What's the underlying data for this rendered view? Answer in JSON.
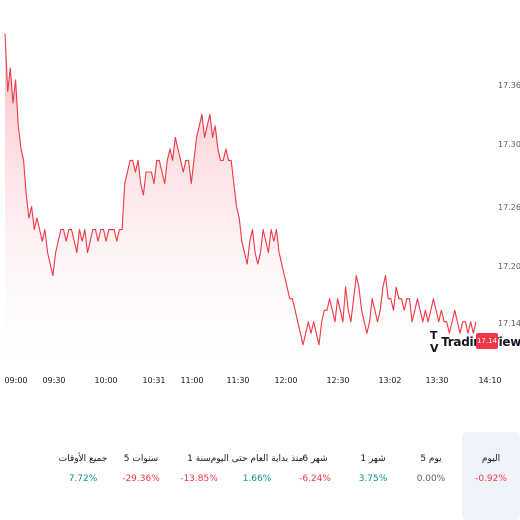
{
  "chart_data": {
    "type": "area",
    "x_ticks": [
      "09:00",
      "09:30",
      "10:00",
      "10:31",
      "11:00",
      "11:30",
      "12:00",
      "12:30",
      "13:02",
      "13:30",
      "14:10"
    ],
    "y_ticks": [
      "17.36",
      "17.30",
      "17.26",
      "17.20",
      "17.14"
    ],
    "ylim": [
      17.105,
      17.395
    ],
    "series": [
      {
        "values": [
          17.39,
          17.34,
          17.36,
          17.33,
          17.35,
          17.31,
          17.29,
          17.28,
          17.25,
          17.23,
          17.24,
          17.22,
          17.23,
          17.22,
          17.21,
          17.22,
          17.2,
          17.19,
          17.18,
          17.2,
          17.21,
          17.22,
          17.22,
          17.21,
          17.22,
          17.22,
          17.21,
          17.2,
          17.22,
          17.21,
          17.22,
          17.2,
          17.21,
          17.22,
          17.22,
          17.21,
          17.22,
          17.22,
          17.21,
          17.22,
          17.22,
          17.22,
          17.21,
          17.22,
          17.22,
          17.26,
          17.27,
          17.28,
          17.28,
          17.27,
          17.28,
          17.26,
          17.25,
          17.27,
          17.27,
          17.27,
          17.26,
          17.28,
          17.28,
          17.27,
          17.26,
          17.28,
          17.29,
          17.28,
          17.3,
          17.29,
          17.28,
          17.27,
          17.28,
          17.28,
          17.26,
          17.28,
          17.3,
          17.31,
          17.32,
          17.3,
          17.31,
          17.32,
          17.3,
          17.31,
          17.29,
          17.28,
          17.28,
          17.29,
          17.28,
          17.28,
          17.26,
          17.24,
          17.23,
          17.21,
          17.2,
          17.19,
          17.21,
          17.22,
          17.2,
          17.19,
          17.2,
          17.22,
          17.21,
          17.2,
          17.22,
          17.21,
          17.22,
          17.2,
          17.19,
          17.18,
          17.17,
          17.16,
          17.16,
          17.15,
          17.14,
          17.13,
          17.12,
          17.13,
          17.14,
          17.13,
          17.14,
          17.13,
          17.12,
          17.14,
          17.15,
          17.15,
          17.16,
          17.15,
          17.14,
          17.16,
          17.15,
          17.14,
          17.17,
          17.15,
          17.14,
          17.16,
          17.18,
          17.17,
          17.15,
          17.14,
          17.13,
          17.14,
          17.16,
          17.15,
          17.14,
          17.15,
          17.17,
          17.18,
          17.16,
          17.16,
          17.15,
          17.17,
          17.16,
          17.16,
          17.15,
          17.16,
          17.16,
          17.14,
          17.15,
          17.16,
          17.15,
          17.14,
          17.15,
          17.14,
          17.15,
          17.16,
          17.15,
          17.14,
          17.15,
          17.14,
          17.14,
          17.13,
          17.14,
          17.15,
          17.14,
          17.13,
          17.14,
          17.14,
          17.13,
          17.14,
          17.13,
          17.14
        ]
      }
    ],
    "colors": {
      "line": "#f23645",
      "fill_top": "#f7a6ae",
      "fill_bottom": "#ffffff"
    },
    "grid": false,
    "last_price": "17.14"
  },
  "logo_text": "TradingView",
  "logo_mark": "T V",
  "periods": [
    {
      "label": "اليوم",
      "value": "-0.92%",
      "tone": "neg",
      "active": true
    },
    {
      "label": "5 يوم",
      "value": "0.00%",
      "tone": "neu",
      "active": false
    },
    {
      "label": "1 شهر",
      "value": "3.75%",
      "tone": "pos",
      "active": false
    },
    {
      "label": "6 شهر",
      "value": "-6.24%",
      "tone": "neg",
      "active": false
    },
    {
      "label": "منذ بداية العام حتى اليوم",
      "value": "1.66%",
      "tone": "pos",
      "active": false
    },
    {
      "label": "1 سنة",
      "value": "-13.85%",
      "tone": "neg",
      "active": false
    },
    {
      "label": "5 سنوات",
      "value": "-29.36%",
      "tone": "neg",
      "active": false
    },
    {
      "label": "جميع الأوقات",
      "value": "7.72%",
      "tone": "pos",
      "active": false
    }
  ]
}
